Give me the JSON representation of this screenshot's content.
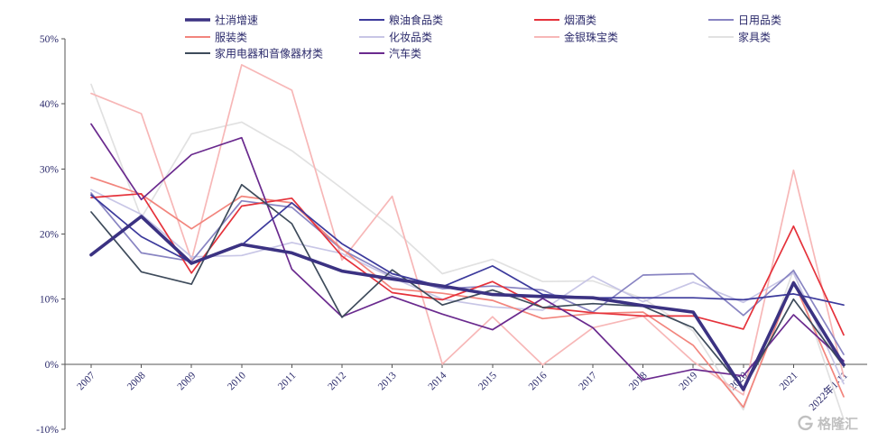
{
  "chart_data": {
    "type": "line",
    "categories": [
      "2007",
      "2008",
      "2009",
      "2010",
      "2011",
      "2012",
      "2013",
      "2014",
      "2015",
      "2016",
      "2017",
      "2018",
      "2019",
      "2020",
      "2021",
      "2022年1-11"
    ],
    "series": [
      {
        "name": "社消增速",
        "color": "#3b3282",
        "values": [
          16.8,
          22.7,
          15.5,
          18.4,
          17.1,
          14.3,
          13.1,
          12.0,
          10.7,
          10.4,
          10.2,
          9.0,
          8.0,
          -3.9,
          12.5,
          -0.1
        ]
      },
      {
        "name": "粮油食品类",
        "color": "#3c3a9c",
        "values": [
          26.0,
          19.6,
          15.6,
          18.3,
          24.8,
          18.5,
          13.9,
          11.9,
          15.1,
          10.7,
          10.2,
          10.2,
          10.2,
          9.9,
          10.8,
          9.1
        ]
      },
      {
        "name": "烟酒类",
        "color": "#e5323b",
        "values": [
          25.6,
          26.2,
          14.0,
          24.3,
          25.5,
          16.6,
          11.0,
          9.9,
          12.7,
          8.7,
          7.9,
          7.4,
          7.4,
          5.4,
          21.2,
          4.5
        ]
      },
      {
        "name": "日用品类",
        "color": "#8884c2",
        "values": [
          26.3,
          17.1,
          15.8,
          25.1,
          24.1,
          17.6,
          13.5,
          11.6,
          12.0,
          11.4,
          8.0,
          13.7,
          13.9,
          7.5,
          14.4,
          1.5
        ]
      },
      {
        "name": "服装类",
        "color": "#f2857d",
        "values": [
          28.7,
          26.1,
          20.8,
          25.8,
          24.8,
          17.7,
          11.6,
          10.9,
          9.8,
          7.0,
          7.8,
          8.0,
          2.9,
          -6.6,
          12.7,
          -5.0
        ]
      },
      {
        "name": "化妆品类",
        "color": "#c8c6e6",
        "values": [
          26.8,
          23.0,
          16.5,
          16.7,
          18.7,
          17.0,
          13.3,
          10.0,
          8.8,
          8.3,
          13.5,
          9.6,
          12.6,
          9.5,
          14.0,
          -3.0
        ]
      },
      {
        "name": "金银珠宝类",
        "color": "#f7b7b7",
        "values": [
          41.6,
          38.5,
          16.0,
          46.0,
          42.1,
          16.0,
          25.8,
          0.0,
          7.3,
          -0.1,
          5.6,
          7.4,
          0.4,
          -4.7,
          29.8,
          -1.9
        ]
      },
      {
        "name": "家具类",
        "color": "#e1e1e1",
        "values": [
          43.0,
          22.5,
          35.4,
          37.2,
          32.8,
          27.0,
          21.0,
          13.9,
          16.1,
          12.7,
          12.8,
          10.1,
          5.1,
          -7.0,
          14.5,
          -8.5
        ]
      },
      {
        "name": "家用电器和音像器材类",
        "color": "#3e4b5b",
        "values": [
          23.4,
          14.2,
          12.3,
          27.6,
          21.6,
          7.2,
          14.5,
          9.1,
          11.4,
          8.7,
          9.3,
          8.9,
          5.6,
          -3.8,
          10.0,
          -0.3
        ]
      },
      {
        "name": "汽车类",
        "color": "#6a2a8e",
        "values": [
          36.9,
          25.3,
          32.2,
          34.8,
          14.6,
          7.3,
          10.4,
          7.7,
          5.3,
          10.1,
          5.6,
          -2.4,
          -0.8,
          -1.8,
          7.6,
          0.5
        ]
      }
    ],
    "ylim": [
      -10,
      50
    ],
    "yticks": [
      -10,
      0,
      10,
      20,
      30,
      40,
      50
    ],
    "ytick_labels": [
      "-10%",
      "0%",
      "10%",
      "20%",
      "30%",
      "40%",
      "50%"
    ],
    "grid": false,
    "legend": "top"
  },
  "watermark": "格隆汇"
}
